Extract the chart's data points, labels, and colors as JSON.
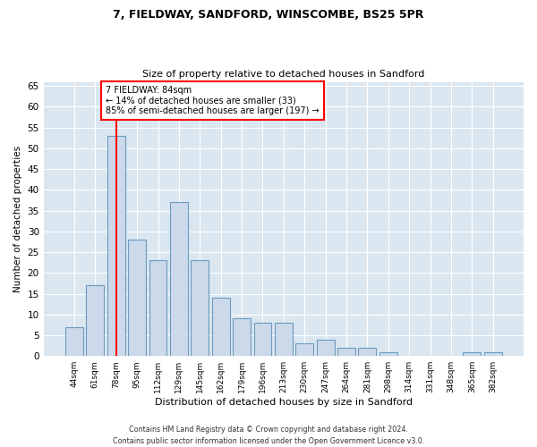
{
  "title1": "7, FIELDWAY, SANDFORD, WINSCOMBE, BS25 5PR",
  "title2": "Size of property relative to detached houses in Sandford",
  "xlabel": "Distribution of detached houses by size in Sandford",
  "ylabel": "Number of detached properties",
  "bar_labels": [
    "44sqm",
    "61sqm",
    "78sqm",
    "95sqm",
    "112sqm",
    "129sqm",
    "145sqm",
    "162sqm",
    "179sqm",
    "196sqm",
    "213sqm",
    "230sqm",
    "247sqm",
    "264sqm",
    "281sqm",
    "298sqm",
    "314sqm",
    "331sqm",
    "348sqm",
    "365sqm",
    "382sqm"
  ],
  "bar_values": [
    7,
    17,
    53,
    28,
    23,
    37,
    23,
    14,
    9,
    8,
    8,
    3,
    4,
    2,
    2,
    1,
    0,
    0,
    0,
    1,
    1
  ],
  "bar_color": "#ccd9ea",
  "bar_edge_color": "#6a9bbf",
  "background_color": "#dae6f0",
  "vline_x": 2,
  "vline_color": "red",
  "annotation_text": "7 FIELDWAY: 84sqm\n← 14% of detached houses are smaller (33)\n85% of semi-detached houses are larger (197) →",
  "annotation_box_color": "white",
  "annotation_box_edge": "red",
  "footer1": "Contains HM Land Registry data © Crown copyright and database right 2024.",
  "footer2": "Contains public sector information licensed under the Open Government Licence v3.0.",
  "ylim": [
    0,
    66
  ],
  "yticks": [
    0,
    5,
    10,
    15,
    20,
    25,
    30,
    35,
    40,
    45,
    50,
    55,
    60,
    65
  ]
}
